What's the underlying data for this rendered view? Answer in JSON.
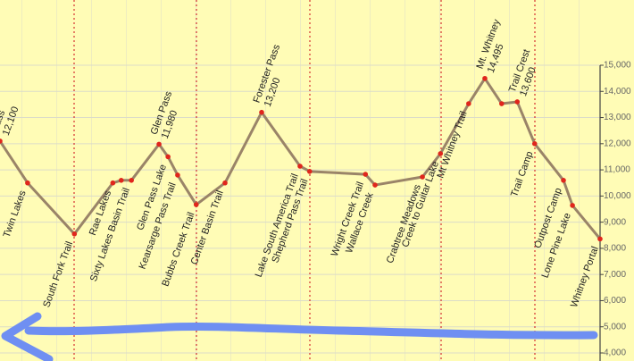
{
  "chart_data": {
    "type": "line",
    "categories": [
      "Pass",
      "Twin Lakes",
      "South Fork Trail",
      "Rae Lakes",
      null,
      "Sixty Lakes Basin Trail",
      "Glen Pass",
      "Glen Pass Lake",
      "Kearsarge Pass Trail",
      "Bubbs Creek Trail",
      "Center Basin Trail",
      "Forester Pass",
      "Lake South America Trail",
      "Shepherd Pass Trail",
      "Wright Creek Trail",
      "Wallace Creek",
      "Crabtree Meadows",
      "Creek to Guitar Lake",
      "Mt Whitney Trail",
      "Mt. Whitney",
      null,
      "Trail Crest",
      "Trail Camp",
      "Outpost Camp",
      "Lone Pine Lake",
      "Whitney Portal"
    ],
    "x": [
      0,
      4.6,
      12.4,
      18.8,
      20.2,
      21.9,
      26.5,
      28.0,
      29.6,
      32.7,
      37.5,
      43.6,
      50.0,
      51.6,
      60.9,
      62.5,
      70.4,
      73.4,
      78.1,
      80.8,
      83.6,
      86.2,
      89.1,
      93.9,
      95.4,
      100
    ],
    "values": [
      12100,
      10500,
      8550,
      10500,
      10600,
      10600,
      11980,
      11500,
      10800,
      9670,
      10500,
      13200,
      11140,
      10940,
      10830,
      10420,
      10730,
      11620,
      13530,
      14495,
      13530,
      13600,
      12000,
      10600,
      9640,
      8360
    ],
    "value_labels": [
      "12,100",
      null,
      null,
      null,
      null,
      null,
      "11,980",
      null,
      null,
      null,
      null,
      "13,200",
      null,
      null,
      null,
      null,
      null,
      null,
      null,
      "14,495",
      null,
      "13,600",
      null,
      null,
      null,
      null
    ],
    "color": "#9a8468",
    "marker_color": "#e0261c",
    "xlim": [
      0,
      100
    ],
    "ylim": [
      4000,
      15000
    ],
    "yticks": [
      {
        "value": 4000,
        "label": "4,000"
      },
      {
        "value": 5000,
        "label": "5,000"
      },
      {
        "value": 6000,
        "label": "6,000"
      },
      {
        "value": 7000,
        "label": "7,000"
      },
      {
        "value": 8000,
        "label": "8,000"
      },
      {
        "value": 9000,
        "label": "9,000"
      },
      {
        "value": 10000,
        "label": "10,000"
      },
      {
        "value": 11000,
        "label": "11,000"
      },
      {
        "value": 12000,
        "label": "12,000"
      },
      {
        "value": 13000,
        "label": "13,000"
      },
      {
        "value": 14000,
        "label": "14,000"
      },
      {
        "value": 15000,
        "label": "15,000"
      }
    ],
    "grid": true
  }
}
